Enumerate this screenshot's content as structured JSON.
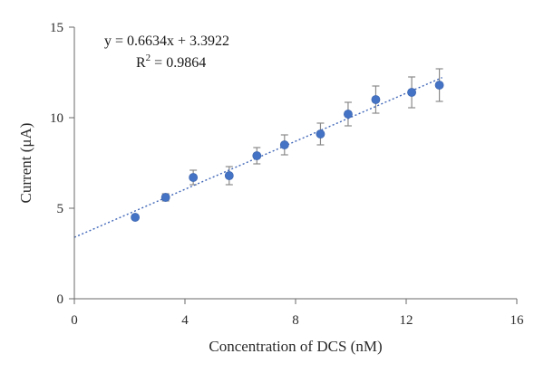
{
  "chart_data": {
    "type": "scatter",
    "xlabel": "Concentration of DCS (nM)",
    "ylabel": "Current (μA)",
    "xlim": [
      0,
      16
    ],
    "ylim": [
      0,
      15
    ],
    "x_ticks": [
      0,
      4,
      8,
      12,
      16
    ],
    "y_ticks": [
      0,
      5,
      10,
      15
    ],
    "grid": false,
    "legend": "none",
    "series": [
      {
        "x": [
          2.2,
          3.3,
          4.3,
          5.6,
          6.6,
          7.6,
          8.9,
          9.9,
          10.9,
          12.2,
          13.2
        ],
        "y": [
          4.5,
          5.6,
          6.7,
          6.8,
          7.9,
          8.5,
          9.1,
          10.2,
          11.0,
          11.4,
          11.8
        ],
        "y_err": [
          0.0,
          0.2,
          0.4,
          0.5,
          0.45,
          0.55,
          0.6,
          0.65,
          0.75,
          0.85,
          0.9
        ],
        "color": "#4472c4"
      }
    ],
    "trendline": {
      "type": "linear",
      "slope": 0.6634,
      "intercept": 3.3922,
      "x_range": [
        0,
        13.3
      ],
      "equation_label": "y = 0.6634x + 3.3922",
      "r2_label_prefix": "R",
      "r2_label_sup": "2",
      "r2_label_value": " = 0.9864",
      "color": "#3f66b8"
    }
  }
}
